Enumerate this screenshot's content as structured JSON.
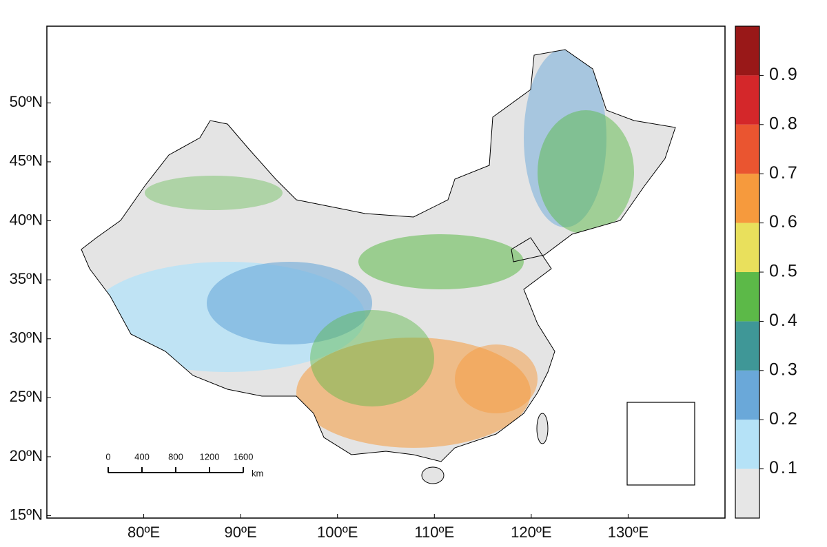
{
  "map": {
    "xlim": [
      70,
      140
    ],
    "ylim": [
      14.8,
      56.5
    ],
    "xticks": [
      {
        "value": 80,
        "label": "80ºE"
      },
      {
        "value": 90,
        "label": "90ºE"
      },
      {
        "value": 100,
        "label": "100ºE"
      },
      {
        "value": 110,
        "label": "110ºE"
      },
      {
        "value": 120,
        "label": "120ºE"
      },
      {
        "value": 130,
        "label": "130ºE"
      }
    ],
    "yticks": [
      {
        "value": 15,
        "label": "15ºN"
      },
      {
        "value": 20,
        "label": "20ºN"
      },
      {
        "value": 25,
        "label": "25ºN"
      },
      {
        "value": 30,
        "label": "30ºN"
      },
      {
        "value": 35,
        "label": "35ºN"
      },
      {
        "value": 40,
        "label": "40ºN"
      },
      {
        "value": 45,
        "label": "45ºN"
      },
      {
        "value": 50,
        "label": "50ºN"
      }
    ],
    "scale_bar": {
      "ticks": [
        0,
        400,
        800,
        1200,
        1600
      ],
      "unit": "km"
    },
    "colorbar": {
      "lim": [
        0,
        1
      ],
      "ticks": [
        0.1,
        0.2,
        0.3,
        0.4,
        0.5,
        0.6,
        0.7,
        0.8,
        0.9
      ],
      "colors": [
        "#e6e6e6",
        "#b5e2f7",
        "#6aa8d9",
        "#3f9797",
        "#5cb948",
        "#e9e05c",
        "#f69a3d",
        "#ea5530",
        "#d4272a",
        "#991818"
      ]
    }
  }
}
